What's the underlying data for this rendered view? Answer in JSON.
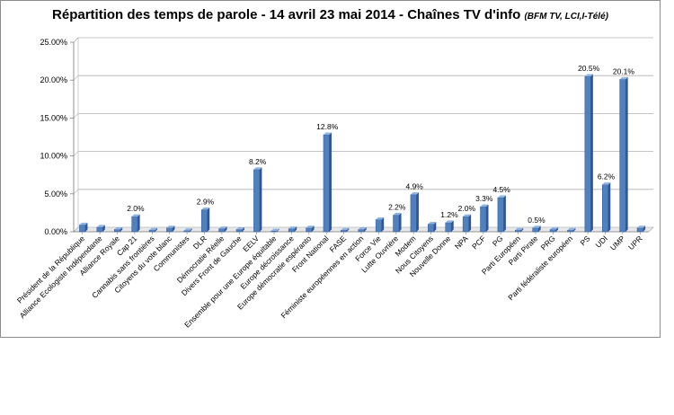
{
  "chart_data": {
    "type": "bar",
    "title": "Répartition des temps de parole - 14 avril 23 mai 2014 - Chaînes TV d'info",
    "subtitle": "(BFM TV, LCI,I-Télé)",
    "xlabel": "",
    "ylabel": "",
    "ylim": [
      0,
      25
    ],
    "yticks": [
      "0.00%",
      "5.00%",
      "10.00%",
      "15.00%",
      "20.00%",
      "25.00%"
    ],
    "grid": true,
    "legend": "none",
    "bar_color": "#4f81bd",
    "categories": [
      "Président de la République",
      "Alliance Ecologiste Indépendante",
      "Alliance Royale",
      "Cap 21",
      "Cannabis sans frontières",
      "Citoyens du vote blanc",
      "Communistes",
      "DLR",
      "Démocratie Réelle",
      "Divers Front de Gauche",
      "EELV",
      "Ensemble pour une Europe équitable",
      "Europe décroissance",
      "Europe démocratie espéranto",
      "Front National",
      "FASE",
      "Féministe européennes en action",
      "Force Vie",
      "Lutte Ouvrière",
      "Modem",
      "Nous Citoyens",
      "Nouvelle Donne",
      "NPA",
      "PCF",
      "PG",
      "Parti Européen",
      "Parti Pirate",
      "PRG",
      "Parti fédéraliste européen",
      "PS",
      "UDI",
      "UMP",
      "UPR"
    ],
    "values": [
      0.9,
      0.6,
      0.3,
      2.0,
      0.2,
      0.5,
      0.15,
      2.9,
      0.4,
      0.3,
      8.2,
      0.1,
      0.4,
      0.5,
      12.8,
      0.2,
      0.3,
      1.6,
      2.2,
      4.9,
      1.0,
      1.2,
      2.0,
      3.3,
      4.5,
      0.2,
      0.5,
      0.3,
      0.2,
      20.5,
      6.2,
      20.1,
      0.5
    ],
    "data_labels": {
      "3": "2.0%",
      "7": "2.9%",
      "10": "8.2%",
      "14": "12.8%",
      "18": "2.2%",
      "19": "4.9%",
      "21": "1.2%",
      "22": "2.0%",
      "23": "3.3%",
      "24": "4.5%",
      "26": "0.5%",
      "29": "20.5%",
      "30": "6.2%",
      "31": "20.1%"
    }
  }
}
